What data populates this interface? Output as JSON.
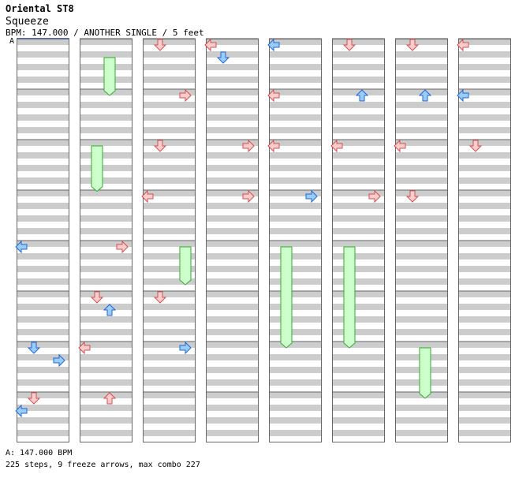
{
  "header": {
    "title": "Oriental ST8",
    "song": "Squeeze",
    "meta": "BPM: 147.000 / ANOTHER SINGLE / 5 feet",
    "bpm_marker": "A"
  },
  "footer": {
    "bpm_legend": "A: 147.000 BPM",
    "stats": "225 steps, 9 freeze arrows, max combo 227"
  },
  "colors": {
    "stripe": "#cccccc",
    "border": "#666666",
    "red_fill": "#ffcccc",
    "red_stroke": "#d05050",
    "blue_fill": "#99ccff",
    "blue_stroke": "#2266cc",
    "freeze_fill": "#ccffcc",
    "freeze_stroke": "#33aa33",
    "pink_fill": "#ffccff",
    "pink_stroke": "#cc44cc"
  },
  "chart_data": {
    "type": "table",
    "columns": 8,
    "measures_per_column": 8,
    "lanes": [
      "left",
      "down",
      "up",
      "right"
    ],
    "notes": [
      [
        2,
        0,
        "D",
        "red"
      ],
      [
        2,
        1,
        "R",
        "red"
      ],
      [
        2,
        2,
        "D",
        "red"
      ],
      [
        2,
        3,
        "L",
        "red"
      ],
      [
        2,
        5,
        "D",
        "red"
      ],
      [
        2,
        6,
        "R",
        "blue"
      ],
      [
        3,
        0,
        "L",
        "red"
      ],
      [
        3,
        0,
        "D",
        "blue"
      ],
      [
        3,
        2,
        "R",
        "red"
      ],
      [
        3,
        3,
        "R",
        "red"
      ],
      [
        4,
        0,
        "L",
        "blue"
      ],
      [
        4,
        1,
        "L",
        "red"
      ],
      [
        4,
        2,
        "L",
        "red"
      ],
      [
        4,
        3,
        "R",
        "blue"
      ],
      [
        5,
        0,
        "D",
        "red"
      ],
      [
        5,
        1,
        "U",
        "blue"
      ],
      [
        5,
        2,
        "L",
        "red"
      ],
      [
        5,
        3,
        "R",
        "red"
      ],
      [
        6,
        0,
        "D",
        "red"
      ],
      [
        6,
        1,
        "U",
        "blue"
      ],
      [
        6,
        2,
        "L",
        "red"
      ],
      [
        6,
        3,
        "D",
        "red"
      ],
      [
        7,
        0,
        "L",
        "red"
      ],
      [
        7,
        1,
        "L",
        "blue"
      ],
      [
        7,
        2,
        "D",
        "red"
      ],
      [
        0,
        4,
        "L",
        "blue"
      ],
      [
        0,
        6,
        "D",
        "blue"
      ],
      [
        0,
        7,
        "D",
        "red"
      ],
      [
        0,
        6,
        "R",
        "blue"
      ],
      [
        0,
        7,
        "L",
        "blue"
      ],
      [
        1,
        4,
        "R",
        "red"
      ],
      [
        1,
        5,
        "D",
        "red"
      ],
      [
        1,
        5,
        "U",
        "blue"
      ],
      [
        1,
        6,
        "L",
        "red"
      ],
      [
        1,
        7,
        "U",
        "red"
      ]
    ],
    "freezes": [
      [
        1,
        2,
        0,
        "D",
        0.0,
        0.9
      ],
      [
        2,
        4,
        0,
        "R",
        0.0,
        0.75
      ],
      [
        1,
        0,
        3,
        "U",
        0.25,
        1.0
      ],
      [
        4,
        4,
        0,
        "D",
        0.0,
        2.0
      ],
      [
        5,
        4,
        0,
        "D",
        0.0,
        2.0
      ],
      [
        6,
        6,
        0,
        "U",
        0.0,
        1.0
      ]
    ]
  }
}
